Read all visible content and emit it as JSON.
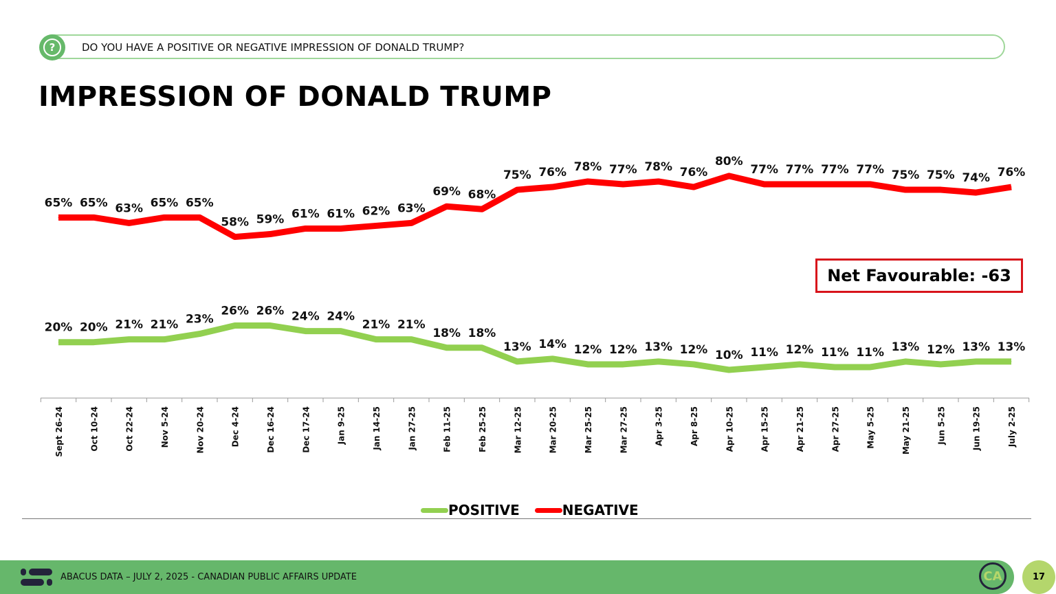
{
  "header": {
    "question": "DO YOU HAVE A POSITIVE OR NEGATIVE IMPRESSION OF DONALD TRUMP?",
    "question_icon": "question-bubble-icon"
  },
  "chart_data": {
    "type": "line",
    "title": "IMPRESSION OF DONALD TRUMP",
    "categories": [
      "Sept 26-24",
      "Oct 10-24",
      "Oct 22-24",
      "Nov 5-24",
      "Nov 20-24",
      "Dec 4-24",
      "Dec 16-24",
      "Dec 17-24",
      "Jan 9-25",
      "Jan 14-25",
      "Jan 27-25",
      "Feb 11-25",
      "Feb 25-25",
      "Mar 12-25",
      "Mar 20-25",
      "Mar 25-25",
      "Mar 27-25",
      "Apr 3-25",
      "Apr 8-25",
      "Apr 10-25",
      "Apr 15-25",
      "Apr 21-25",
      "Apr 27-25",
      "May 5-25",
      "May 21-25",
      "Jun 5-25",
      "Jun 19-25",
      "July 2-25"
    ],
    "series": [
      {
        "name": "POSITIVE",
        "color": "#92d050",
        "values": [
          20,
          20,
          21,
          21,
          23,
          26,
          26,
          24,
          24,
          21,
          21,
          18,
          18,
          13,
          14,
          12,
          12,
          13,
          12,
          10,
          11,
          12,
          11,
          11,
          13,
          12,
          13,
          13
        ]
      },
      {
        "name": "NEGATIVE",
        "color": "#ff0000",
        "values": [
          65,
          65,
          63,
          65,
          65,
          58,
          59,
          61,
          61,
          62,
          63,
          69,
          68,
          75,
          76,
          78,
          77,
          78,
          76,
          80,
          77,
          77,
          77,
          77,
          75,
          75,
          74,
          76
        ]
      }
    ],
    "value_suffix": "%",
    "legend": "bottom",
    "grid": false,
    "annotation": "Net Favourable: -63"
  },
  "footer": {
    "text": "ABACUS DATA – JULY 2, 2025 - CANADIAN PUBLIC AFFAIRS UPDATE",
    "ca_logo": "CA",
    "page": "17"
  }
}
